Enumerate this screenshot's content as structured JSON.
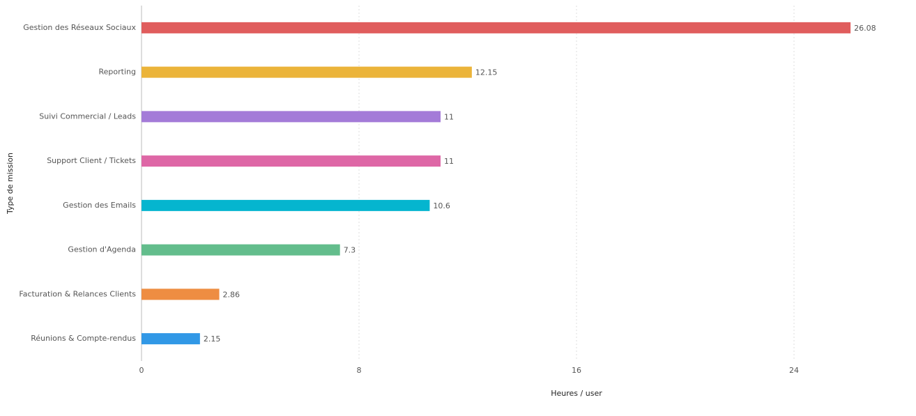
{
  "chart_data": {
    "type": "bar",
    "orientation": "horizontal",
    "categories": [
      "Gestion des Réseaux Sociaux",
      "Reporting",
      "Suivi Commercial / Leads",
      "Support Client / Tickets",
      "Gestion des Emails",
      "Gestion d'Agenda",
      "Facturation & Relances Clients",
      "Réunions & Compte-rendus"
    ],
    "values": [
      26.08,
      12.15,
      11,
      11,
      10.6,
      7.3,
      2.86,
      2.15
    ],
    "colors": [
      "#e05d5d",
      "#ebb43a",
      "#a47bd8",
      "#de67a6",
      "#05b5cf",
      "#63bd8c",
      "#ee8d42",
      "#3198e6"
    ],
    "xlim": [
      0,
      28
    ],
    "xticks": [
      0,
      8,
      16,
      24
    ],
    "grid": true,
    "x_label": "Heures / user",
    "y_label": "Type de mission"
  }
}
